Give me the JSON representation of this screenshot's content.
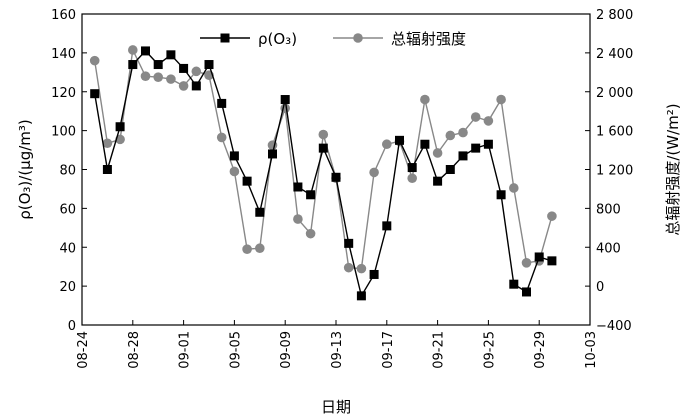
{
  "chart_data": {
    "type": "line",
    "xlabel": "日期",
    "ylabel": "ρ(O₃)/(μg/m³)",
    "y2label": "总辐射强度/(W/m²)",
    "x_ticks": [
      "08-24",
      "08-28",
      "09-01",
      "09-05",
      "09-09",
      "09-13",
      "09-17",
      "09-21",
      "09-25",
      "09-29",
      "10-03"
    ],
    "ylim": [
      0,
      160
    ],
    "y_ticks": [
      "0",
      "20",
      "40",
      "60",
      "80",
      "100",
      "120",
      "140",
      "160"
    ],
    "y2lim": [
      -400,
      2800
    ],
    "y2_ticks": [
      "−400",
      "0",
      "400",
      "800",
      "1 200",
      "1 600",
      "2 000",
      "2 400",
      "2 800"
    ],
    "legend": {
      "position": "top-center"
    },
    "series": [
      {
        "name": "ρ(O₃)",
        "axis": "left",
        "color": "#000000",
        "marker": "square",
        "x": [
          "08-25",
          "08-26",
          "08-27",
          "08-28",
          "08-29",
          "08-30",
          "08-31",
          "09-01",
          "09-02",
          "09-03",
          "09-04",
          "09-05",
          "09-06",
          "09-07",
          "09-08",
          "09-09",
          "09-10",
          "09-11",
          "09-12",
          "09-13",
          "09-14",
          "09-15",
          "09-16",
          "09-17",
          "09-18",
          "09-19",
          "09-20",
          "09-21",
          "09-22",
          "09-23",
          "09-24",
          "09-25",
          "09-26",
          "09-27",
          "09-28",
          "09-29",
          "09-30"
        ],
        "values": [
          119,
          80,
          102,
          134,
          141,
          134,
          139,
          132,
          123,
          134,
          114,
          87,
          74,
          58,
          88,
          116,
          71,
          67,
          91,
          76,
          42,
          15,
          26,
          51,
          95,
          81,
          93,
          74,
          80,
          87,
          91,
          93,
          67,
          21,
          17,
          35,
          33
        ]
      },
      {
        "name": "总辐射强度",
        "axis": "right",
        "color": "#888888",
        "marker": "circle",
        "x": [
          "08-25",
          "08-26",
          "08-27",
          "08-28",
          "08-29",
          "08-30",
          "08-31",
          "09-01",
          "09-02",
          "09-03",
          "09-04",
          "09-05",
          "09-06",
          "09-07",
          "09-08",
          "09-09",
          "09-10",
          "09-11",
          "09-12",
          "09-13",
          "09-14",
          "09-15",
          "09-16",
          "09-17",
          "09-18",
          "09-19",
          "09-20",
          "09-21",
          "09-22",
          "09-23",
          "09-24",
          "09-25",
          "09-26",
          "09-27",
          "09-28",
          "09-29",
          "09-30"
        ],
        "values": [
          2320,
          1470,
          1510,
          2430,
          2160,
          2150,
          2130,
          2060,
          2210,
          2170,
          1530,
          1180,
          380,
          390,
          1450,
          1830,
          690,
          540,
          1560,
          1110,
          190,
          180,
          1170,
          1460,
          1490,
          1110,
          1920,
          1370,
          1550,
          1580,
          1740,
          1700,
          1920,
          1010,
          240,
          260,
          720
        ]
      }
    ]
  }
}
